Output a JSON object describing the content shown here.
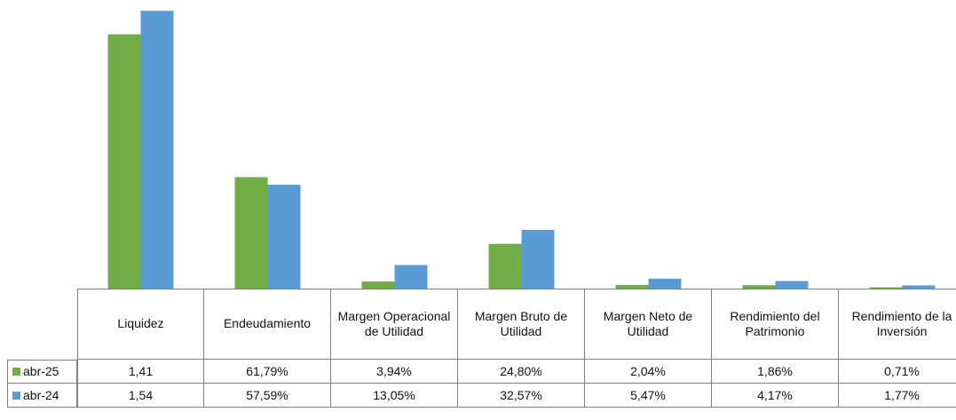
{
  "chart_data": {
    "type": "bar",
    "categories": [
      "Liquidez",
      "Endeudamiento",
      "Margen Operacional de Utilidad",
      "Margen Bruto de Utilidad",
      "Margen Neto de Utilidad",
      "Rendimiento del Patrimonio",
      "Rendimiento de la Inversión"
    ],
    "series": [
      {
        "name": "abr-25",
        "color": "#70ad47",
        "values": [
          1.41,
          0.6179,
          0.0394,
          0.248,
          0.0204,
          0.0186,
          0.0071
        ],
        "value_labels": [
          "1,41",
          "61,79%",
          "3,94%",
          "24,80%",
          "2,04%",
          "1,86%",
          "0,71%"
        ]
      },
      {
        "name": "abr-24",
        "color": "#5b9bd5",
        "values": [
          1.54,
          0.5759,
          0.1305,
          0.3257,
          0.0547,
          0.0417,
          0.0177
        ],
        "value_labels": [
          "1,54",
          "57,59%",
          "13,05%",
          "32,57%",
          "5,47%",
          "4,17%",
          "1,77%"
        ]
      }
    ],
    "ylim": [
      0,
      1.6
    ]
  }
}
